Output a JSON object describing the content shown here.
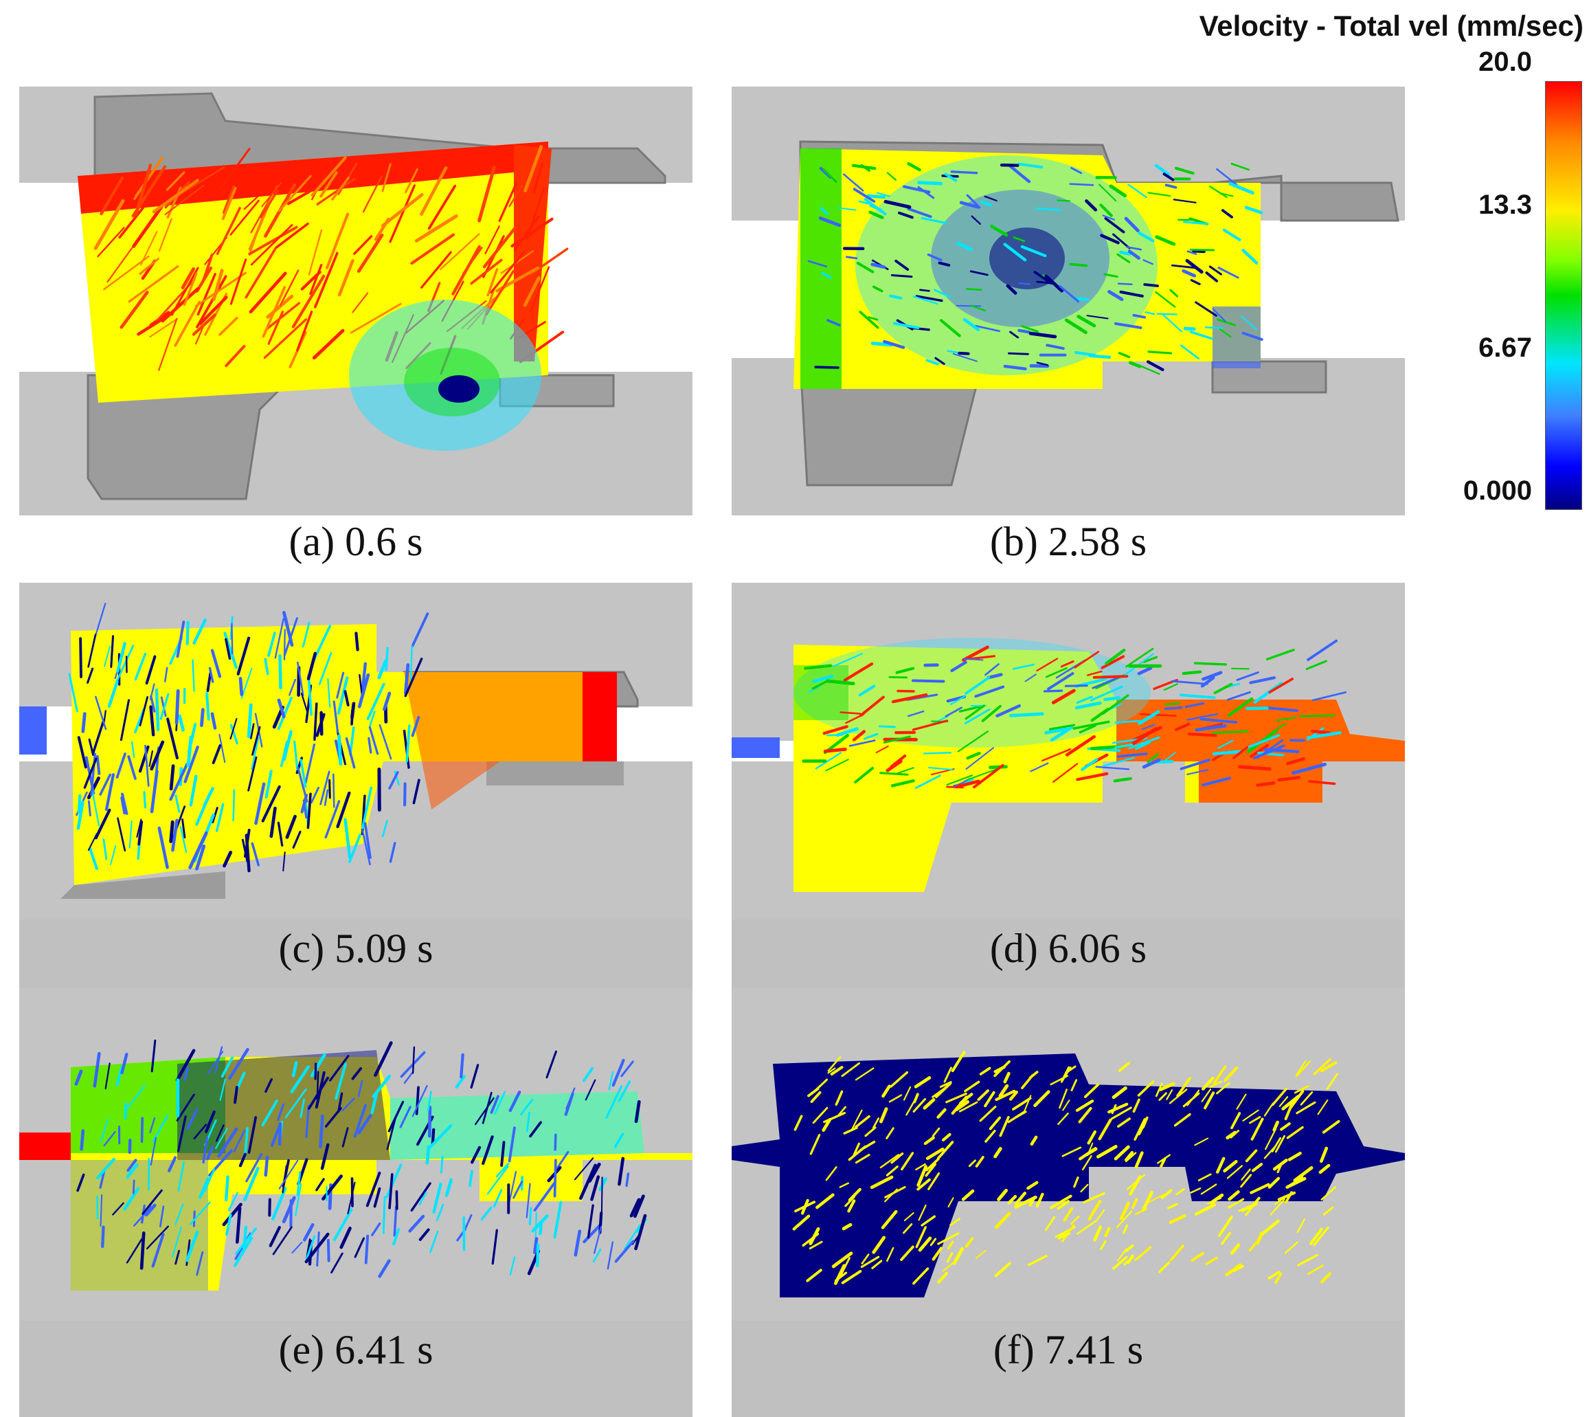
{
  "legend": {
    "title": "Velocity - Total vel (mm/sec)",
    "max_label": "20.0",
    "ticks": [
      "20.0",
      "13.3",
      "6.67",
      "0.000"
    ],
    "colors": [
      "#ff0000",
      "#ff9900",
      "#ffff00",
      "#00e000",
      "#00e5ff",
      "#3a64ff",
      "#000080"
    ]
  },
  "panels": [
    {
      "caption": "(a) 0.6 s",
      "dominant_color": "#ffff00"
    },
    {
      "caption": "(b) 2.58 s",
      "dominant_color": "#ffff00"
    },
    {
      "caption": "(c) 5.09 s",
      "dominant_color": "#ffff00"
    },
    {
      "caption": "(d) 6.06 s",
      "dominant_color": "#ffff00"
    },
    {
      "caption": "(e) 6.41 s",
      "dominant_color": "#ffff00"
    },
    {
      "caption": "(f) 7.41 s",
      "dominant_color": "#000080"
    }
  ]
}
